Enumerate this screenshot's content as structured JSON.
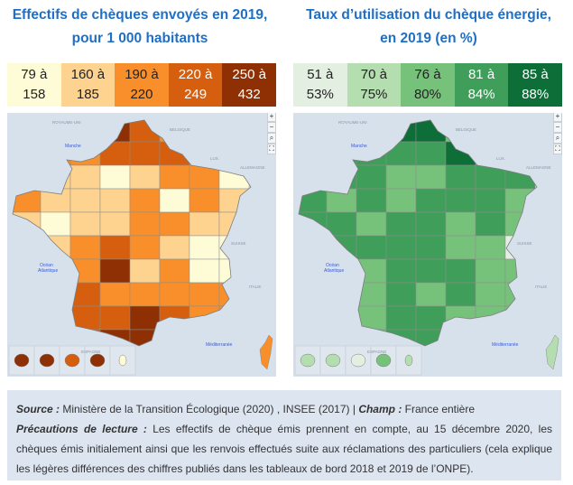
{
  "left_panel": {
    "title_line1": "Effectifs de chèques envoyés en 2019,",
    "title_line2": "pour 1 000 habitants",
    "legend": [
      {
        "from": "79 à",
        "to": "158",
        "color": "#fefcd6",
        "text_color": "#222222"
      },
      {
        "from": "160 à",
        "to": "185",
        "color": "#fed38f",
        "text_color": "#222222"
      },
      {
        "from": "190 à",
        "to": "220",
        "color": "#f98f2a",
        "text_color": "#222222"
      },
      {
        "from": "220 à",
        "to": "249",
        "color": "#d65f0f",
        "text_color": "#ffffff"
      },
      {
        "from": "250 à",
        "to": "432",
        "color": "#8f3004",
        "text_color": "#ffffff"
      }
    ]
  },
  "right_panel": {
    "title_line1": "Taux d’utilisation du chèque énergie,",
    "title_line2": "en 2019 (en %)",
    "legend": [
      {
        "from": "51 à",
        "to": "53%",
        "color": "#e3efe0",
        "text_color": "#222222"
      },
      {
        "from": "70 à",
        "to": "75%",
        "color": "#b4ddb0",
        "text_color": "#222222"
      },
      {
        "from": "76 à",
        "to": "80%",
        "color": "#77c27b",
        "text_color": "#222222"
      },
      {
        "from": "81 à",
        "to": "84%",
        "color": "#3f9f5a",
        "text_color": "#ffffff"
      },
      {
        "from": "85 à",
        "to": "88%",
        "color": "#0d6e37",
        "text_color": "#ffffff"
      }
    ]
  },
  "map_labels": {
    "uk": "ROYAUME-UNI",
    "belgium": "BELGIQUE",
    "lux": "LUX.",
    "germany": "ALLEMAGNE",
    "switzerland": "SUISSE",
    "italy": "ITALIE",
    "spain": "ESPAGNE",
    "manche": "Manche",
    "atlantic1": "Océan",
    "atlantic2": "Atlantique",
    "med": "Méditerranée"
  },
  "map_controls": {
    "zoom_in": "+",
    "zoom_out": "−",
    "search": "⌕",
    "fullscreen": "⛶"
  },
  "footer": {
    "source_label": "Source :",
    "source_text": " Ministère de la Transition Écologique (2020) , INSEE (2017)  |  ",
    "champ_label": "Champ :",
    "champ_text": " France entière",
    "precautions_label": "Précautions de lecture :",
    "precautions_text": " Les effectifs de chèque émis prennent en compte, au 15 décembre 2020, les chèques émis initialement ainsi que les renvois effectués suite aux réclamations des particuliers (cela explique les légères différences des chiffres publiés dans les tableaux de bord 2018 et 2019 de l’ONPE)."
  }
}
